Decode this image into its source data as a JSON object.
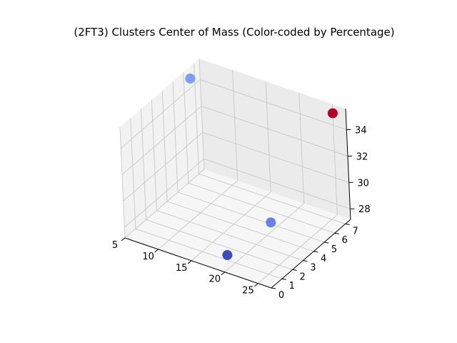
{
  "chart_data": {
    "type": "scatter",
    "projection": "3d",
    "title": "(2FT3) Clusters Center of Mass (Color-coded by Percentage)",
    "xlabel": "",
    "ylabel": "",
    "zlabel": "",
    "grid": true,
    "color_scale": "coolwarm",
    "xlim": [
      5,
      27
    ],
    "ylim": [
      0,
      7.5
    ],
    "zlim": [
      27.2,
      35.6
    ],
    "x_ticks": [
      5,
      10,
      15,
      20,
      25
    ],
    "y_ticks": [
      0,
      1,
      2,
      3,
      4,
      5,
      6,
      7
    ],
    "z_ticks": [
      28,
      30,
      32,
      34
    ],
    "points": [
      {
        "x": 6.0,
        "y": 6.0,
        "z": 35.3,
        "color": "#7b9ff9"
      },
      {
        "x": 25.5,
        "y": 7.2,
        "z": 35.2,
        "color": "#b40426"
      },
      {
        "x": 21.0,
        "y": 3.8,
        "z": 28.5,
        "color": "#6384eb"
      },
      {
        "x": 18.5,
        "y": 1.2,
        "z": 27.4,
        "color": "#3b4cc0"
      }
    ]
  }
}
